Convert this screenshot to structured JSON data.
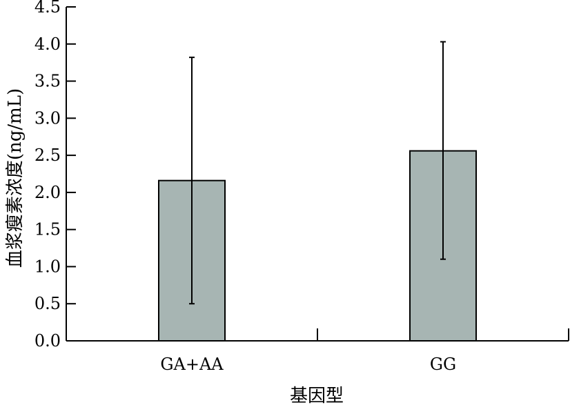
{
  "chart_data": {
    "type": "bar",
    "categories": [
      "GA+AA",
      "GG"
    ],
    "values": [
      2.16,
      2.56
    ],
    "error_low": [
      0.5,
      1.1
    ],
    "error_high": [
      3.82,
      4.03
    ],
    "xlabel": "基因型",
    "ylabel": "血浆瘦素浓度(ng/mL)",
    "ylim": [
      0,
      4.5
    ],
    "yticks": [
      "0.0",
      "0.5",
      "1.0",
      "1.5",
      "2.0",
      "2.5",
      "3.0",
      "3.5",
      "4.0",
      "4.5"
    ],
    "grid": false,
    "bar_color": "#a7b5b3"
  }
}
